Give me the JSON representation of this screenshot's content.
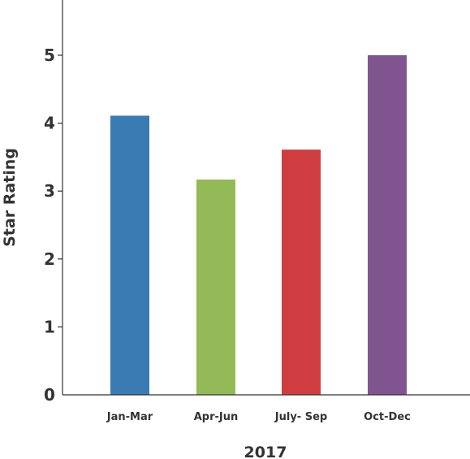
{
  "chart_data": {
    "type": "bar",
    "categories": [
      "Jan-Mar",
      "Apr-Jun",
      "July- Sep",
      "Oct-Dec"
    ],
    "values": [
      4.11,
      3.17,
      3.61,
      5.0
    ],
    "colors": [
      "#3a7bb3",
      "#93ba57",
      "#cf3d41",
      "#7f548f"
    ],
    "xlabel": "2017",
    "ylabel": "Star Rating",
    "ylim": [
      0,
      5.7
    ],
    "yticks": [
      0,
      1,
      2,
      3,
      4,
      5
    ],
    "grid": false,
    "axis_color": "#333333"
  }
}
